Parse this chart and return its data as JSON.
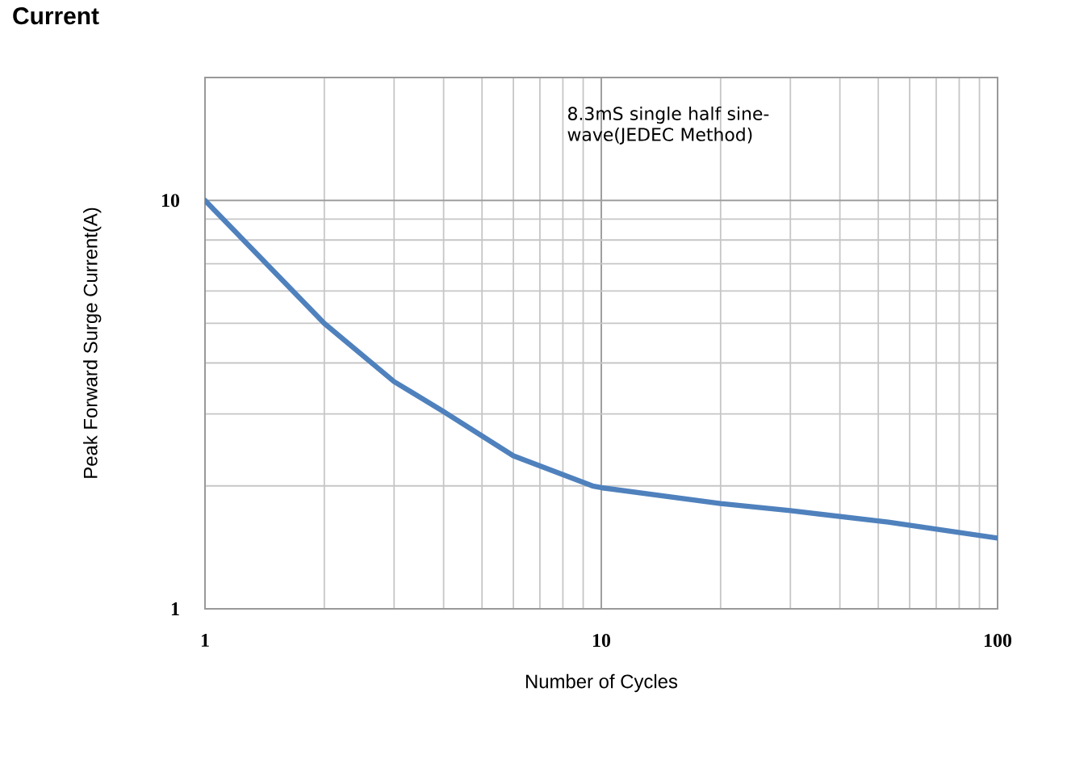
{
  "chart_data": {
    "type": "line",
    "title": "Current",
    "xlabel": "Number of Cycles",
    "ylabel": "Peak Forward  Surge Current(A)",
    "annotations": [
      "8.3mS  single half sine-wave(JEDEC Method)"
    ],
    "log": "xy",
    "grid": true,
    "marker": "none",
    "line_style": "solid",
    "xlim": [
      1,
      100
    ],
    "xticks": [
      1,
      10,
      100
    ],
    "ylim": [
      1,
      20
    ],
    "yticks": [
      1,
      10
    ],
    "series": [
      {
        "color": "#4f81bd",
        "x": [
          1,
          2,
          3,
          4,
          6,
          9.5,
          10,
          20,
          30,
          53,
          100
        ],
        "values": [
          10,
          5,
          3.6,
          3.04,
          2.37,
          2.0,
          1.98,
          1.81,
          1.74,
          1.63,
          1.49
        ]
      }
    ]
  }
}
